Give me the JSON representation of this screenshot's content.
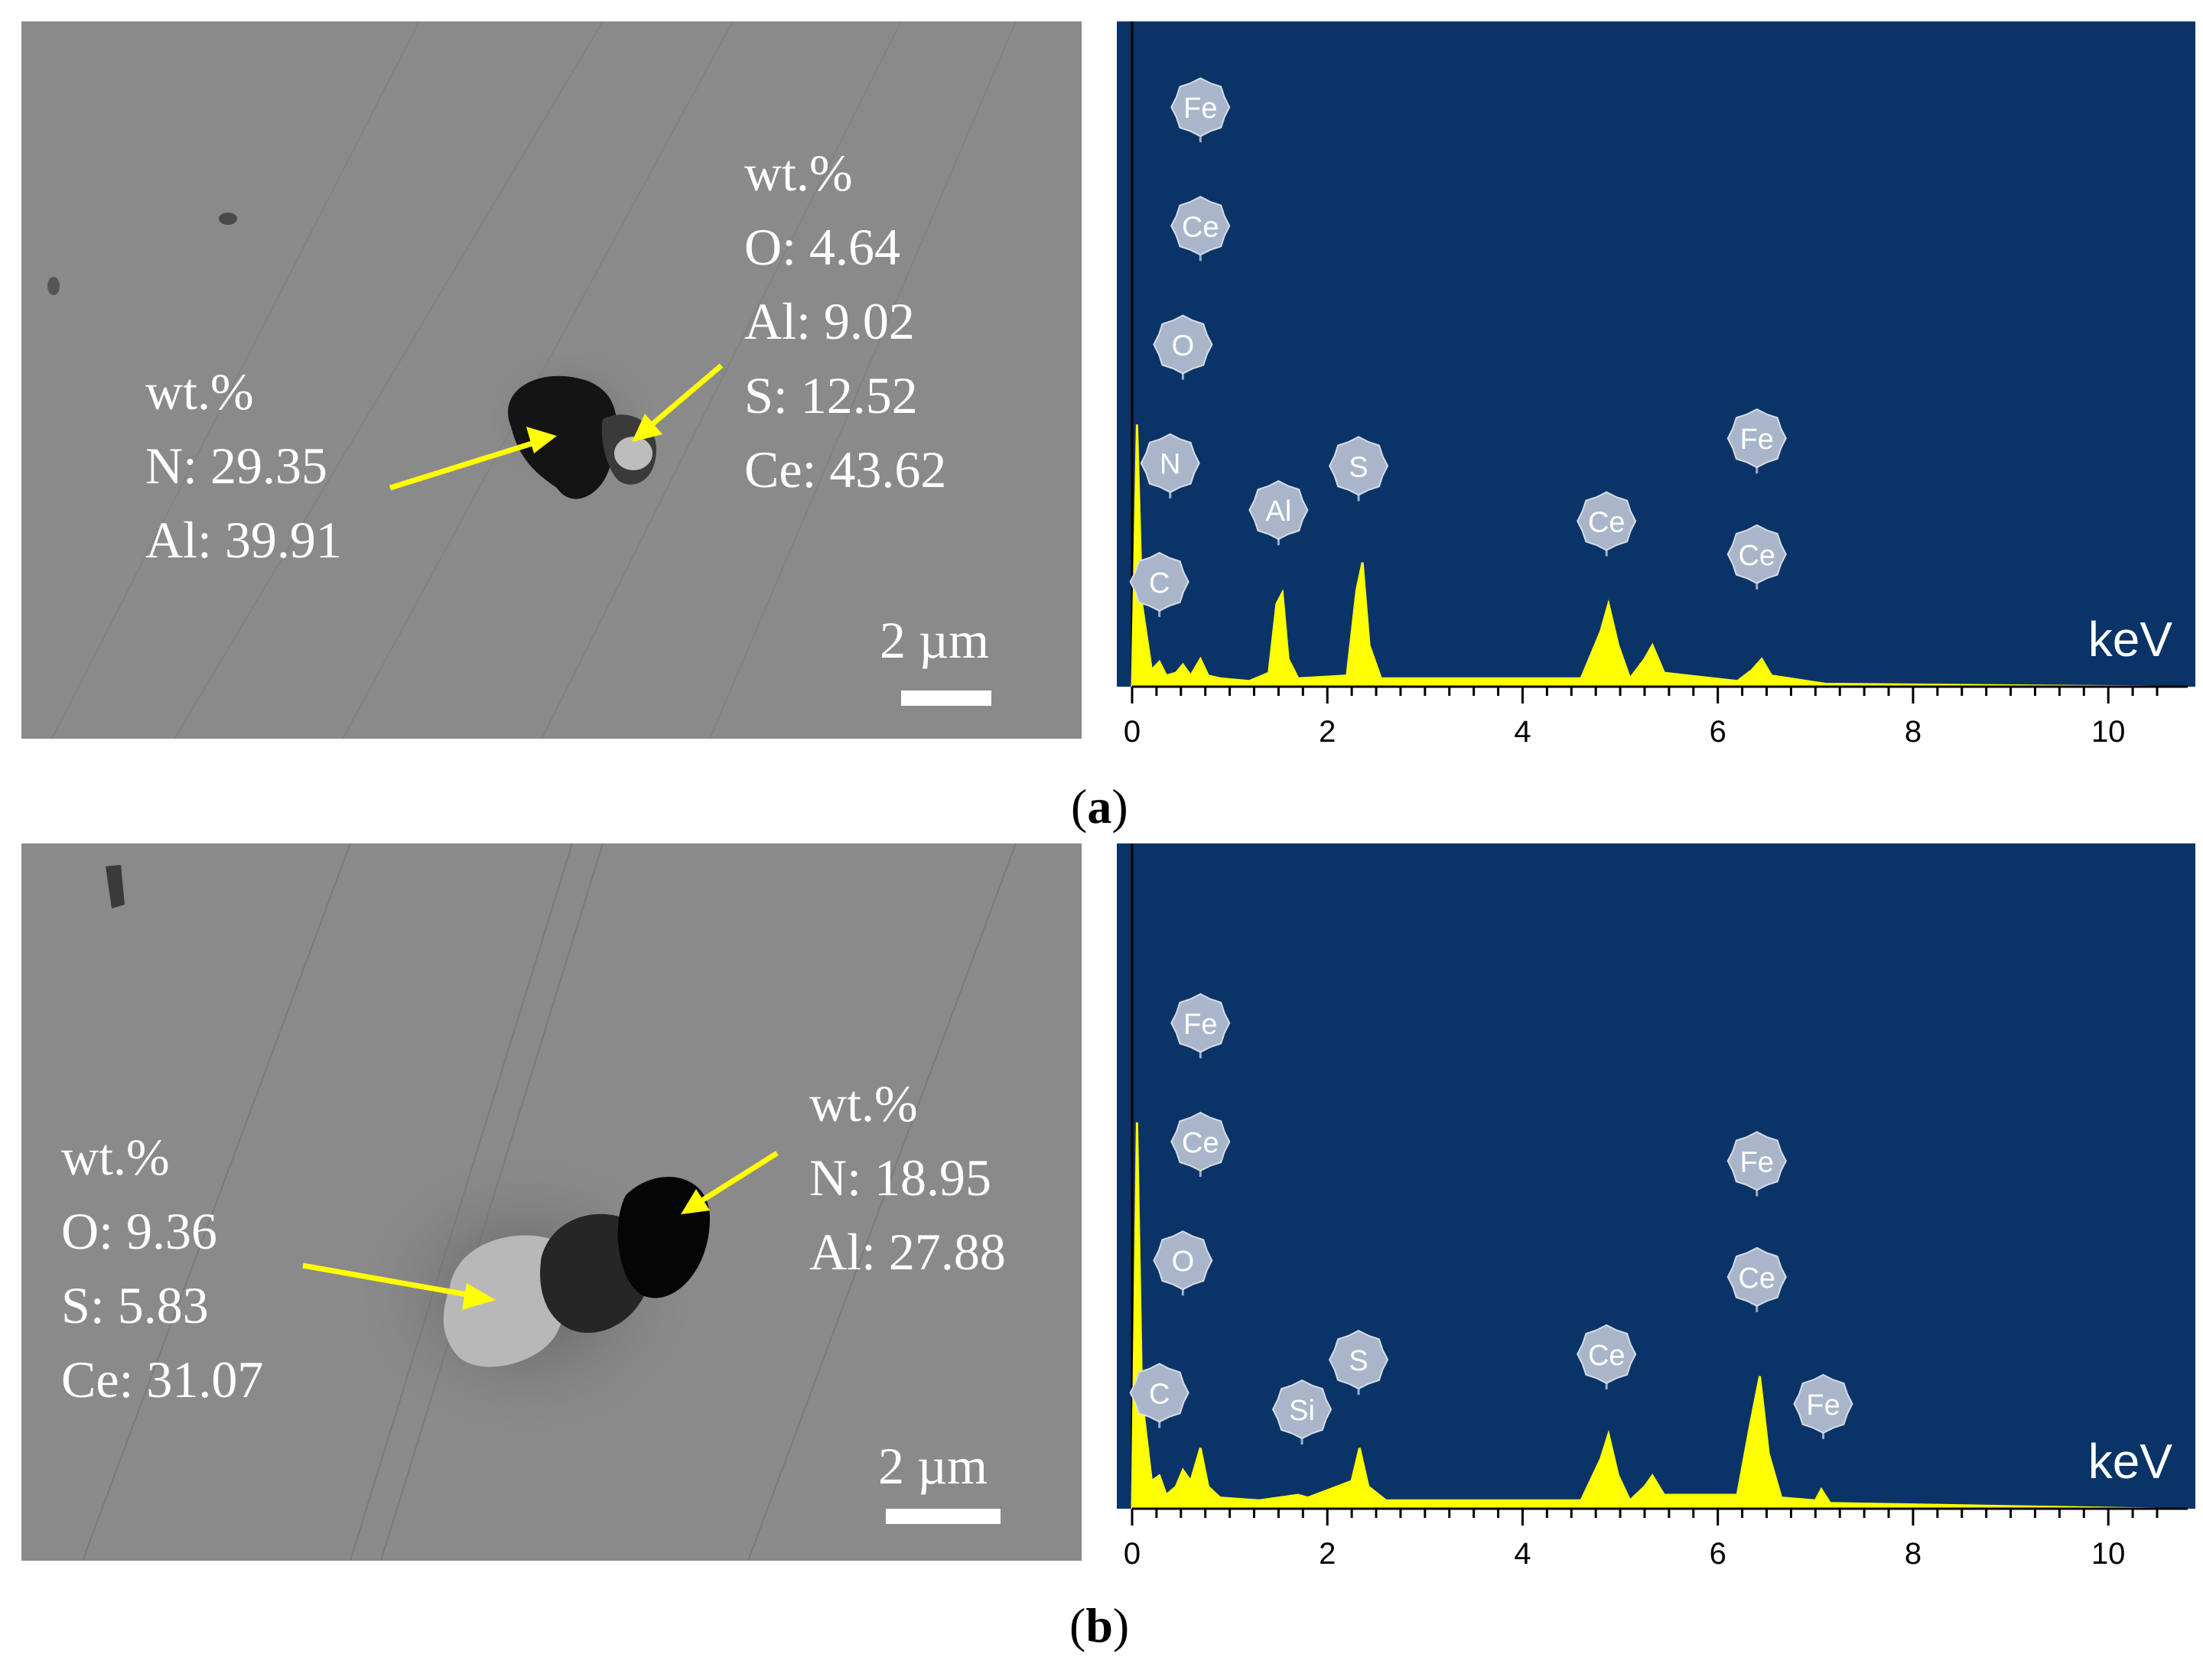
{
  "panels": [
    {
      "caption_letter": "a",
      "sem": {
        "scale_label": "2 µm",
        "annotations": [
          {
            "lines": [
              "wt.%",
              "N: 29.35",
              "Al: 39.91"
            ]
          },
          {
            "lines": [
              "wt.%",
              "O: 4.64",
              "Al: 9.02",
              "S: 12.52",
              "Ce: 43.62"
            ]
          }
        ]
      },
      "chart_data": {
        "type": "line",
        "xlabel": "keV",
        "xlim": [
          0,
          10.5
        ],
        "x_ticks": [
          "0",
          "2",
          "4",
          "6",
          "8",
          "10"
        ],
        "background_color": "#0a3468",
        "series_color": "#ffff00",
        "spectrum": [
          [
            0.0,
            0.0
          ],
          [
            0.05,
            0.95
          ],
          [
            0.1,
            0.3
          ],
          [
            0.2,
            0.06
          ],
          [
            0.28,
            0.09
          ],
          [
            0.35,
            0.04
          ],
          [
            0.45,
            0.05
          ],
          [
            0.52,
            0.08
          ],
          [
            0.6,
            0.04
          ],
          [
            0.7,
            0.1
          ],
          [
            0.78,
            0.04
          ],
          [
            0.9,
            0.03
          ],
          [
            1.2,
            0.02
          ],
          [
            1.4,
            0.05
          ],
          [
            1.48,
            0.3
          ],
          [
            1.54,
            0.34
          ],
          [
            1.6,
            0.1
          ],
          [
            1.7,
            0.03
          ],
          [
            2.2,
            0.04
          ],
          [
            2.3,
            0.35
          ],
          [
            2.36,
            0.45
          ],
          [
            2.43,
            0.15
          ],
          [
            2.55,
            0.03
          ],
          [
            4.6,
            0.03
          ],
          [
            4.8,
            0.2
          ],
          [
            4.88,
            0.3
          ],
          [
            4.98,
            0.15
          ],
          [
            5.1,
            0.03
          ],
          [
            5.25,
            0.1
          ],
          [
            5.33,
            0.15
          ],
          [
            5.45,
            0.05
          ],
          [
            5.7,
            0.04
          ],
          [
            6.2,
            0.02
          ],
          [
            6.35,
            0.06
          ],
          [
            6.45,
            0.1
          ],
          [
            6.55,
            0.04
          ],
          [
            7.1,
            0.01
          ],
          [
            10.5,
            0.0
          ]
        ],
        "peak_labels": [
          {
            "text": "Fe",
            "x": 0.7,
            "y": 2.1
          },
          {
            "text": "Ce",
            "x": 0.7,
            "y": 1.67
          },
          {
            "text": "O",
            "x": 0.52,
            "y": 1.24
          },
          {
            "text": "N",
            "x": 0.39,
            "y": 0.81
          },
          {
            "text": "C",
            "x": 0.28,
            "y": 0.38
          },
          {
            "text": "Al",
            "x": 1.5,
            "y": 0.64
          },
          {
            "text": "S",
            "x": 2.32,
            "y": 0.8
          },
          {
            "text": "Ce",
            "x": 4.86,
            "y": 0.6
          },
          {
            "text": "Fe",
            "x": 6.4,
            "y": 0.9
          },
          {
            "text": "Ce",
            "x": 6.4,
            "y": 0.48
          }
        ]
      }
    },
    {
      "caption_letter": "b",
      "sem": {
        "scale_label": "2 µm",
        "annotations": [
          {
            "lines": [
              "wt.%",
              "O: 9.36",
              "S: 5.83",
              "Ce: 31.07"
            ]
          },
          {
            "lines": [
              "wt.%",
              "N: 18.95",
              "Al: 27.88"
            ]
          }
        ]
      },
      "chart_data": {
        "type": "line",
        "xlabel": "keV",
        "xlim": [
          0,
          10.5
        ],
        "x_ticks": [
          "0",
          "2",
          "4",
          "6",
          "8",
          "10"
        ],
        "background_color": "#0a3468",
        "series_color": "#ffff00",
        "spectrum": [
          [
            0.0,
            0.0
          ],
          [
            0.05,
            1.4
          ],
          [
            0.1,
            0.4
          ],
          [
            0.2,
            0.1
          ],
          [
            0.28,
            0.12
          ],
          [
            0.35,
            0.05
          ],
          [
            0.45,
            0.08
          ],
          [
            0.52,
            0.14
          ],
          [
            0.6,
            0.1
          ],
          [
            0.7,
            0.22
          ],
          [
            0.78,
            0.08
          ],
          [
            0.9,
            0.04
          ],
          [
            1.3,
            0.03
          ],
          [
            1.7,
            0.05
          ],
          [
            1.8,
            0.04
          ],
          [
            2.25,
            0.1
          ],
          [
            2.33,
            0.22
          ],
          [
            2.42,
            0.08
          ],
          [
            2.6,
            0.03
          ],
          [
            4.6,
            0.03
          ],
          [
            4.8,
            0.18
          ],
          [
            4.88,
            0.27
          ],
          [
            4.98,
            0.12
          ],
          [
            5.1,
            0.03
          ],
          [
            5.25,
            0.08
          ],
          [
            5.33,
            0.12
          ],
          [
            5.45,
            0.05
          ],
          [
            6.2,
            0.05
          ],
          [
            6.33,
            0.3
          ],
          [
            6.43,
            0.48
          ],
          [
            6.52,
            0.2
          ],
          [
            6.65,
            0.04
          ],
          [
            7.0,
            0.03
          ],
          [
            7.06,
            0.07
          ],
          [
            7.15,
            0.02
          ],
          [
            10.5,
            0.0
          ]
        ],
        "peak_labels": [
          {
            "text": "Fe",
            "x": 0.7,
            "y": 1.76
          },
          {
            "text": "Ce",
            "x": 0.7,
            "y": 1.33
          },
          {
            "text": "O",
            "x": 0.52,
            "y": 0.9
          },
          {
            "text": "C",
            "x": 0.28,
            "y": 0.42
          },
          {
            "text": "Si",
            "x": 1.74,
            "y": 0.36
          },
          {
            "text": "S",
            "x": 2.32,
            "y": 0.54
          },
          {
            "text": "Ce",
            "x": 4.86,
            "y": 0.56
          },
          {
            "text": "Fe",
            "x": 6.4,
            "y": 1.26
          },
          {
            "text": "Ce",
            "x": 6.4,
            "y": 0.84
          },
          {
            "text": "Fe",
            "x": 7.08,
            "y": 0.38
          }
        ]
      }
    }
  ]
}
